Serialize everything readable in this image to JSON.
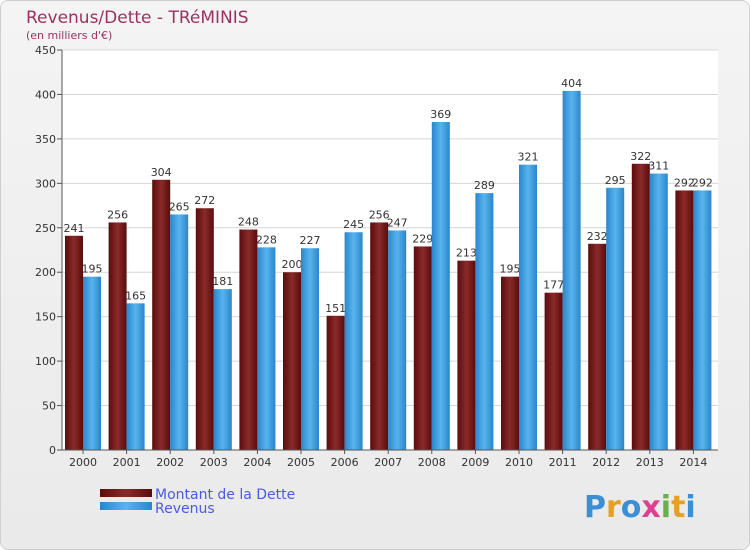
{
  "chart_data": {
    "type": "bar",
    "title": "Revenus/Dette - TRéMINIS",
    "subtitle": "(en milliers d'€)",
    "categories": [
      "2000",
      "2001",
      "2002",
      "2003",
      "2004",
      "2005",
      "2006",
      "2007",
      "2008",
      "2009",
      "2010",
      "2011",
      "2012",
      "2013",
      "2014"
    ],
    "series": [
      {
        "name": "Montant de la Dette",
        "color": "#7a1a1a",
        "values": [
          241,
          256,
          304,
          272,
          248,
          200,
          151,
          256,
          229,
          213,
          195,
          177,
          232,
          322,
          292
        ]
      },
      {
        "name": "Revenus",
        "color": "#3b9ee0",
        "values": [
          195,
          165,
          265,
          181,
          228,
          227,
          245,
          247,
          369,
          289,
          321,
          404,
          295,
          311,
          292
        ]
      }
    ],
    "ylim": [
      0,
      450
    ],
    "yticks": [
      0,
      50,
      100,
      150,
      200,
      250,
      300,
      350,
      400,
      450
    ],
    "grid": true,
    "legend_position": "bottom-left"
  },
  "logo": {
    "letters": [
      "P",
      "r",
      "o",
      "x",
      "i",
      "t",
      "i"
    ],
    "colors": [
      "#3a8fd6",
      "#e8a020",
      "#3a8fd6",
      "#e04090",
      "#6ab04a",
      "#e8a020",
      "#3a8fd6"
    ]
  }
}
